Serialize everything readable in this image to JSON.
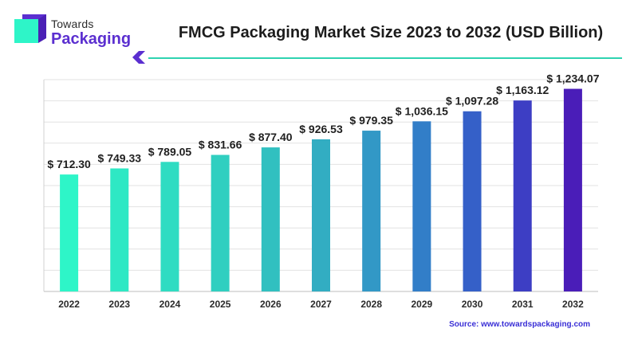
{
  "header": {
    "logo_top": "Towards",
    "logo_bottom": "Packaging",
    "title": "FMCG Packaging Market Size 2023 to 2032 (USD Billion)"
  },
  "source_text": "Source: www.towardspackaging.com",
  "colors": {
    "brand_purple": "#5b2fd0",
    "divider_teal": "#2ed3b0",
    "bar_start": "#2ef5c8",
    "bar_end": "#4a1db8"
  },
  "chart_data": {
    "type": "bar",
    "categories": [
      "2022",
      "2023",
      "2024",
      "2025",
      "2026",
      "2027",
      "2028",
      "2029",
      "2030",
      "2031",
      "2032"
    ],
    "values": [
      712.3,
      749.33,
      789.05,
      831.66,
      877.4,
      926.53,
      979.35,
      1036.15,
      1097.28,
      1163.12,
      1234.07
    ],
    "value_labels": [
      "$ 712.30",
      "$ 749.33",
      "$ 789.05",
      "$ 831.66",
      "$ 877.40",
      "$ 926.53",
      "$ 979.35",
      "$ 1,036.15",
      "$ 1,097.28",
      "$ 1,163.12",
      "$ 1,234.07"
    ],
    "title": "FMCG Packaging Market Size 2023 to 2032 (USD Billion)",
    "xlabel": "",
    "ylabel": "",
    "ylim": [
      0,
      1290
    ],
    "grid": true,
    "bar_colors": [
      "#2ef5c8",
      "#2ee8c4",
      "#2fdcc2",
      "#30cfc0",
      "#31c0c0",
      "#32adc2",
      "#3298c6",
      "#327ec8",
      "#3560c8",
      "#3d3ec4",
      "#4a1db8"
    ]
  }
}
